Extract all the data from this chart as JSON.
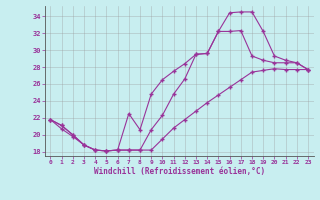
{
  "title": "",
  "xlabel": "Windchill (Refroidissement éolien,°C)",
  "background_color": "#c8eef0",
  "line_color": "#993399",
  "grid_color": "#999999",
  "xlim": [
    -0.5,
    23.5
  ],
  "ylim": [
    17.5,
    35.2
  ],
  "xticks": [
    0,
    1,
    2,
    3,
    4,
    5,
    6,
    7,
    8,
    9,
    10,
    11,
    12,
    13,
    14,
    15,
    16,
    17,
    18,
    19,
    20,
    21,
    22,
    23
  ],
  "yticks": [
    18,
    20,
    22,
    24,
    26,
    28,
    30,
    32,
    34
  ],
  "line1_x": [
    0,
    1,
    2,
    3,
    4,
    5,
    6,
    7,
    8,
    9,
    10,
    11,
    12,
    13,
    14,
    15,
    16,
    17,
    18,
    19,
    20,
    21,
    22,
    23
  ],
  "line1_y": [
    21.8,
    21.1,
    20.0,
    18.8,
    18.2,
    18.1,
    18.2,
    18.2,
    18.2,
    20.6,
    22.3,
    24.8,
    26.6,
    29.5,
    29.6,
    32.2,
    34.4,
    34.5,
    34.5,
    32.2,
    29.3,
    28.8,
    28.5,
    27.7
  ],
  "line2_x": [
    0,
    1,
    2,
    3,
    4,
    5,
    6,
    7,
    8,
    9,
    10,
    11,
    12,
    13,
    14,
    15,
    16,
    17,
    18,
    19,
    20,
    21,
    22,
    23
  ],
  "line2_y": [
    21.8,
    21.1,
    20.0,
    18.8,
    18.2,
    18.1,
    18.2,
    22.5,
    20.6,
    24.8,
    26.5,
    27.5,
    28.4,
    29.5,
    29.6,
    32.2,
    32.2,
    32.3,
    29.3,
    28.8,
    28.5,
    28.5,
    28.5,
    27.7
  ],
  "line3_x": [
    0,
    1,
    2,
    3,
    4,
    5,
    6,
    7,
    8,
    9,
    10,
    11,
    12,
    13,
    14,
    15,
    16,
    17,
    18,
    19,
    20,
    21,
    22,
    23
  ],
  "line3_y": [
    21.8,
    20.7,
    19.8,
    18.8,
    18.2,
    18.1,
    18.2,
    18.2,
    18.2,
    18.2,
    19.5,
    20.8,
    21.8,
    22.8,
    23.8,
    24.7,
    25.6,
    26.5,
    27.4,
    27.6,
    27.8,
    27.7,
    27.7,
    27.7
  ]
}
